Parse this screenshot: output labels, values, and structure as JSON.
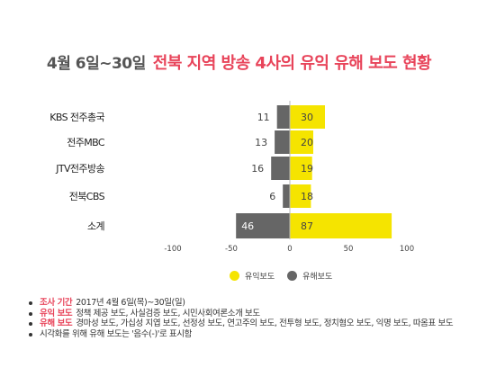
{
  "title": {
    "date": "4월 6일~30일",
    "main": "전북 지역 방송 4사의 유익 유해 보도 현황"
  },
  "chart_data": {
    "type": "bar",
    "orientation": "horizontal-diverging",
    "categories": [
      "KBS 전주총국",
      "전주MBC",
      "JTV전주방송",
      "전북CBS",
      "소계"
    ],
    "series": [
      {
        "name": "유익보도",
        "values": [
          30,
          20,
          19,
          18,
          87
        ],
        "color": "#f5e400"
      },
      {
        "name": "유해보도",
        "values": [
          11,
          13,
          16,
          6,
          46
        ],
        "color": "#666666"
      }
    ],
    "harmful_shown_negative": true,
    "xlim": [
      -100,
      100
    ],
    "xticks": [
      "-100",
      "-50",
      "0",
      "50",
      "100"
    ],
    "grid": false,
    "legend_position": "bottom"
  },
  "legend": [
    {
      "label": "유익보도",
      "color": "#f5e400"
    },
    {
      "label": "유해보도",
      "color": "#666666"
    }
  ],
  "notes": [
    {
      "label": "조사 기간",
      "text": "2017년 4월 6일(목)~30일(일)"
    },
    {
      "label": "유익 보도",
      "text": "정책 제공 보도, 사실검증 보도, 시민사회여론소개 보도"
    },
    {
      "label": "유해 보도",
      "text": "경마성 보도, 가십성 지엽 보도, 선정성 보도, 연고주의 보도, 전투형 보도, 정치혐오 보도, 익명 보도, 따옴표 보도"
    },
    {
      "label": "",
      "text": "시각화를 위해 유해 보도는 '음수(-)'로 표시함"
    }
  ]
}
